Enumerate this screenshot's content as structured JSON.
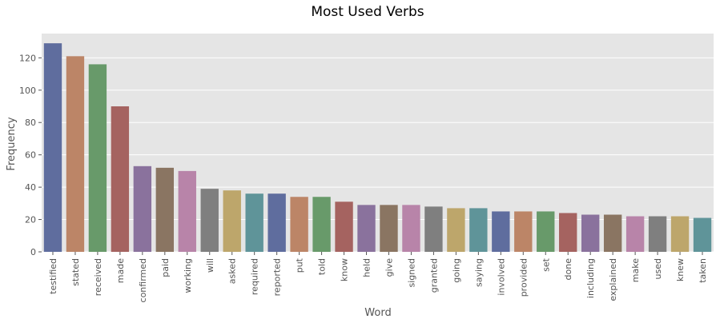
{
  "chart_data": {
    "type": "bar",
    "title": "Most Used Verbs",
    "xlabel": "Word",
    "ylabel": "Frequency",
    "ylim": [
      0,
      135
    ],
    "yticks": [
      0,
      20,
      40,
      60,
      80,
      100,
      120
    ],
    "grid": true,
    "categories": [
      "testified",
      "stated",
      "received",
      "made",
      "confirmed",
      "paid",
      "working",
      "will",
      "asked",
      "required",
      "reported",
      "put",
      "told",
      "know",
      "held",
      "give",
      "signed",
      "granted",
      "going",
      "saying",
      "involved",
      "provided",
      "set",
      "done",
      "including",
      "explained",
      "make",
      "used",
      "knew",
      "taken"
    ],
    "values": [
      129,
      121,
      116,
      90,
      53,
      52,
      50,
      39,
      38,
      36,
      36,
      34,
      34,
      31,
      29,
      29,
      29,
      28,
      27,
      27,
      25,
      25,
      25,
      24,
      23,
      23,
      22,
      22,
      22,
      21
    ],
    "colors": [
      "#5f6d9e",
      "#bc8567",
      "#689a6a",
      "#a56360",
      "#8a729d",
      "#8a7562",
      "#b884a9",
      "#7f7f7f",
      "#bda66b",
      "#5f9499"
    ],
    "background_color": "#e5e5e5",
    "grid_color": "#ffffff"
  }
}
